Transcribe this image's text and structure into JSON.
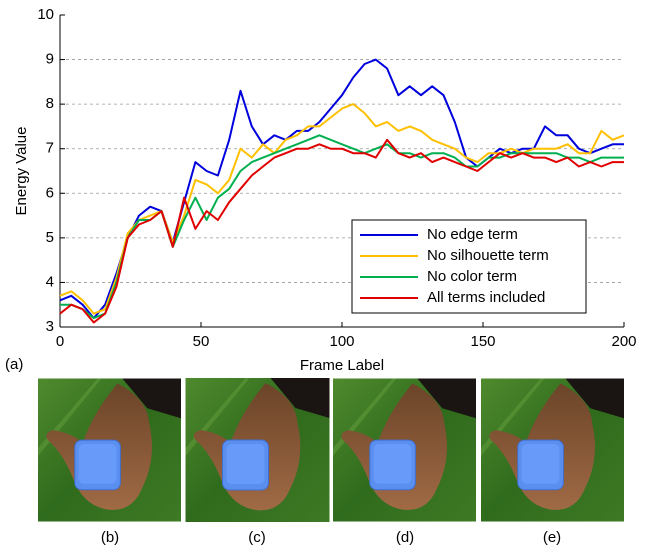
{
  "chart_data": {
    "type": "line",
    "panel_label": "(a)",
    "x_label": "Frame Label",
    "y_label": "Energy Value",
    "xlim": [
      0,
      200
    ],
    "ylim": [
      3,
      10
    ],
    "xticks": [
      0,
      50,
      100,
      150,
      200
    ],
    "yticks": [
      3,
      4,
      5,
      6,
      7,
      8,
      9,
      10
    ],
    "grid": true,
    "legend": "lower right",
    "x": [
      0,
      4,
      8,
      12,
      16,
      20,
      24,
      28,
      32,
      36,
      40,
      44,
      48,
      52,
      56,
      60,
      64,
      68,
      72,
      76,
      80,
      84,
      88,
      92,
      96,
      100,
      104,
      108,
      112,
      116,
      120,
      124,
      128,
      132,
      136,
      140,
      144,
      148,
      152,
      156,
      160,
      164,
      168,
      172,
      176,
      180,
      184,
      188,
      192,
      196,
      200
    ],
    "series": [
      {
        "name": "No edge term",
        "color": "#0000dd",
        "values": [
          3.6,
          3.7,
          3.5,
          3.2,
          3.5,
          4.2,
          5.0,
          5.5,
          5.7,
          5.6,
          4.9,
          5.8,
          6.7,
          6.5,
          6.4,
          7.2,
          8.3,
          7.5,
          7.1,
          7.3,
          7.2,
          7.4,
          7.4,
          7.6,
          7.9,
          8.2,
          8.6,
          8.9,
          9.0,
          8.8,
          8.2,
          8.4,
          8.2,
          8.4,
          8.2,
          7.6,
          6.8,
          6.6,
          6.8,
          7.0,
          6.9,
          7.0,
          7.0,
          7.5,
          7.3,
          7.3,
          7.0,
          6.9,
          7.0,
          7.1,
          7.1
        ]
      },
      {
        "name": "No silhouette term",
        "color": "#ffc000",
        "values": [
          3.7,
          3.8,
          3.6,
          3.3,
          3.4,
          4.1,
          5.1,
          5.4,
          5.5,
          5.6,
          4.9,
          5.5,
          6.3,
          6.2,
          6.0,
          6.3,
          7.0,
          6.8,
          7.1,
          6.9,
          7.2,
          7.3,
          7.5,
          7.5,
          7.7,
          7.9,
          8.0,
          7.8,
          7.5,
          7.6,
          7.4,
          7.5,
          7.4,
          7.2,
          7.1,
          7.0,
          6.8,
          6.7,
          6.9,
          6.9,
          7.0,
          6.9,
          7.0,
          7.0,
          7.0,
          7.1,
          6.9,
          6.9,
          7.4,
          7.2,
          7.3
        ]
      },
      {
        "name": "No color term",
        "color": "#00b050",
        "values": [
          3.5,
          3.5,
          3.4,
          3.2,
          3.3,
          4.0,
          5.0,
          5.4,
          5.4,
          5.6,
          4.8,
          5.4,
          5.9,
          5.4,
          5.9,
          6.1,
          6.5,
          6.7,
          6.8,
          6.9,
          7.0,
          7.1,
          7.2,
          7.3,
          7.2,
          7.1,
          7.0,
          6.9,
          7.0,
          7.1,
          6.9,
          6.9,
          6.8,
          6.9,
          6.9,
          6.8,
          6.6,
          6.6,
          6.8,
          6.8,
          6.9,
          6.9,
          6.9,
          6.9,
          6.9,
          6.8,
          6.8,
          6.7,
          6.8,
          6.8,
          6.8
        ]
      },
      {
        "name": "All terms included",
        "color": "#e00000",
        "values": [
          3.3,
          3.5,
          3.4,
          3.1,
          3.3,
          3.9,
          5.0,
          5.3,
          5.4,
          5.6,
          4.8,
          5.9,
          5.2,
          5.6,
          5.4,
          5.8,
          6.1,
          6.4,
          6.6,
          6.8,
          6.9,
          7.0,
          7.0,
          7.1,
          7.0,
          7.0,
          6.9,
          6.9,
          6.8,
          7.2,
          6.9,
          6.8,
          6.9,
          6.7,
          6.8,
          6.7,
          6.6,
          6.5,
          6.7,
          6.9,
          6.8,
          6.9,
          6.8,
          6.8,
          6.7,
          6.8,
          6.6,
          6.7,
          6.6,
          6.7,
          6.7
        ]
      }
    ]
  },
  "panels": [
    "(b)",
    "(c)",
    "(d)",
    "(e)"
  ]
}
